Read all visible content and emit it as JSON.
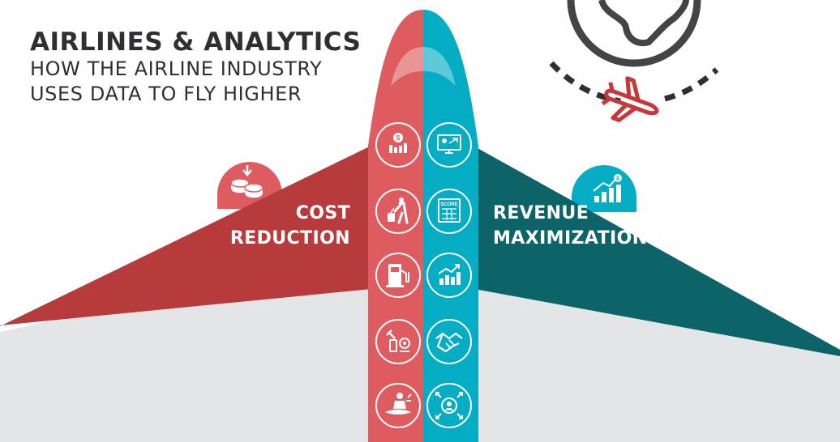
{
  "header": {
    "title": "AIRLINES & ANALYTICS",
    "subtitle_line1": "HOW THE AIRLINE INDUSTRY",
    "subtitle_line2": "USES DATA TO FLY HIGHER"
  },
  "left_wing": {
    "label_line1": "COST",
    "label_line2": "REDUCTION",
    "badge_icon": "coins-down-icon",
    "color": "#b73b3c"
  },
  "right_wing": {
    "label_line1": "REVENUE",
    "label_line2": "MAXIMIZATION",
    "badge_icon": "growth-chart-dollar-icon",
    "color": "#0c6469"
  },
  "fuselage": {
    "left_color": "#de5c5f",
    "right_color": "#05adc4",
    "left_icons": [
      "dollar-chart-icon",
      "traveler-luggage-icon",
      "fuel-pump-icon",
      "maintenance-tools-icon",
      "ground-crew-icon"
    ],
    "right_icons": [
      "monitor-flight-icon",
      "score-card-icon",
      "growth-chart-icon",
      "handshake-icon",
      "customer-focus-icon"
    ],
    "score_text": "SCORE"
  },
  "colors": {
    "gray_wing": "#e4e5e7",
    "text_dark": "#2f2f33",
    "globe": "#444446",
    "plane_icon": "#c5383b"
  },
  "decor": {
    "globe_icon": "globe-icon",
    "plane_icon": "airplane-icon"
  }
}
